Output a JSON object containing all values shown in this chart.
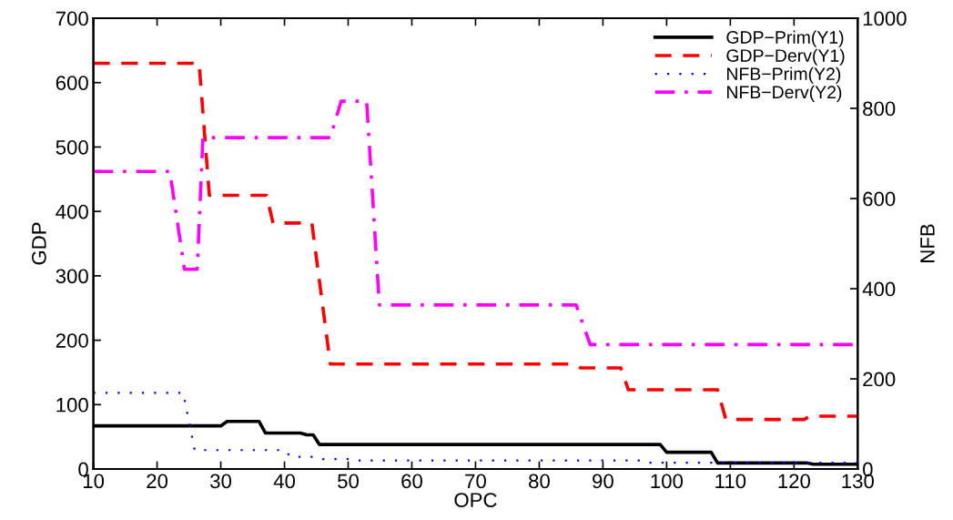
{
  "chart_data": {
    "type": "line",
    "xlabel": "OPC",
    "ylabel": "GDP",
    "y2label": "NFB",
    "xlim": [
      10,
      130
    ],
    "xticks": [
      10,
      20,
      30,
      40,
      50,
      60,
      70,
      80,
      90,
      100,
      110,
      120,
      130
    ],
    "ylim": [
      0,
      700
    ],
    "yticks": [
      0,
      100,
      200,
      300,
      400,
      500,
      600,
      700
    ],
    "y2lim": [
      0,
      1000
    ],
    "y2ticks": [
      0,
      200,
      400,
      600,
      800,
      1000
    ],
    "grid": false,
    "legend": "top right",
    "marker": "none",
    "series": [
      {
        "name": "GDP−Prim(Y1)",
        "color": "#000000",
        "line_style": "solid",
        "x": [
          10,
          30,
          31,
          36,
          37,
          42.5,
          43.5,
          44.5,
          45.5,
          99,
          100,
          107,
          108,
          122,
          123,
          130
        ],
        "values": [
          67,
          67,
          74,
          74,
          56,
          56,
          53,
          53,
          38,
          38,
          26,
          26,
          9.5,
          9.5,
          7.5,
          7.5
        ]
      },
      {
        "name": "GDP−Derv(Y1)",
        "color": "#ff0000",
        "line_style": "dashed",
        "x": [
          10,
          26.6,
          28.2,
          37.2,
          38.2,
          44.3,
          47.2,
          85.4,
          86.5,
          92.8,
          94,
          108,
          109.3,
          121.6,
          122.5,
          130
        ],
        "values": [
          630,
          630,
          425,
          425,
          382,
          382,
          163,
          163,
          157,
          157,
          123,
          123,
          77,
          77,
          82,
          82
        ]
      },
      {
        "name": "NFB−Prim(Y2)",
        "color": "#0000ff",
        "line_style": "dotted",
        "axis": "y2",
        "x": [
          10,
          24.1,
          25.9,
          40,
          41,
          45,
          46,
          50,
          51,
          96,
          97,
          130
        ],
        "values": [
          169,
          169,
          42,
          42,
          27,
          27,
          22,
          22,
          19,
          19,
          14,
          14
        ]
      },
      {
        "name": "NFB−Derv(Y2)",
        "color": "#ff00ff",
        "line_style": "dashdot",
        "axis": "y2",
        "x": [
          10,
          22,
          24.3,
          26.3,
          27.2,
          47.2,
          48.9,
          52.9,
          54.9,
          85.8,
          88,
          130
        ],
        "values": [
          660,
          660,
          443,
          443,
          735,
          735,
          816,
          816,
          364,
          364,
          276,
          276
        ]
      }
    ]
  }
}
